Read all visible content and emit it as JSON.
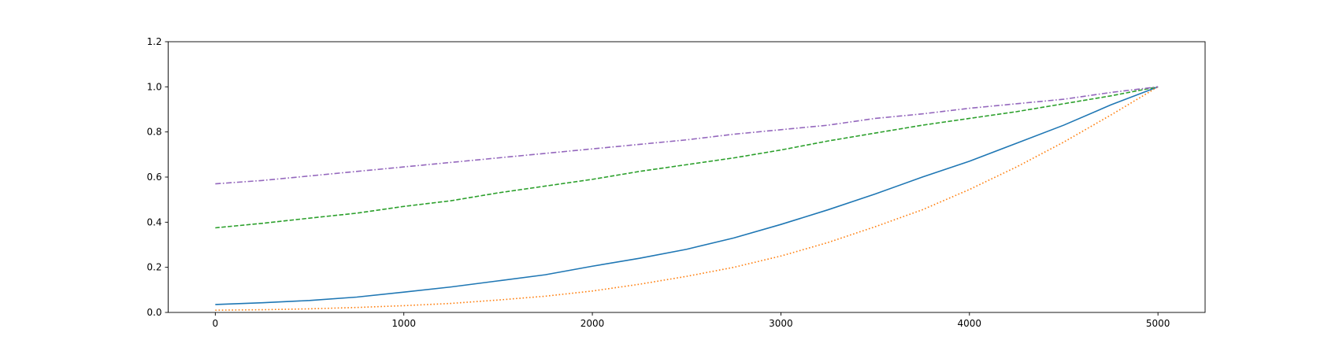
{
  "chart_data": {
    "type": "line",
    "x": [
      0,
      250,
      500,
      750,
      1000,
      1250,
      1500,
      1750,
      2000,
      2250,
      2500,
      2750,
      3000,
      3250,
      3500,
      3750,
      4000,
      4250,
      4500,
      4750,
      5000
    ],
    "series": [
      {
        "color": "#1f77b4",
        "linestyle": "solid",
        "values": [
          0.035,
          0.043,
          0.053,
          0.068,
          0.09,
          0.113,
          0.14,
          0.167,
          0.205,
          0.24,
          0.28,
          0.33,
          0.39,
          0.455,
          0.525,
          0.6,
          0.67,
          0.75,
          0.83,
          0.92,
          1.0
        ]
      },
      {
        "color": "#ff7f0e",
        "linestyle": "dotted",
        "values": [
          0.01,
          0.012,
          0.016,
          0.022,
          0.03,
          0.04,
          0.055,
          0.072,
          0.095,
          0.125,
          0.16,
          0.2,
          0.25,
          0.31,
          0.38,
          0.455,
          0.545,
          0.645,
          0.755,
          0.875,
          1.0
        ]
      },
      {
        "color": "#2ca02c",
        "linestyle": "dashed",
        "values": [
          0.375,
          0.395,
          0.418,
          0.44,
          0.47,
          0.495,
          0.53,
          0.56,
          0.59,
          0.625,
          0.655,
          0.685,
          0.72,
          0.76,
          0.795,
          0.83,
          0.86,
          0.89,
          0.925,
          0.96,
          1.0
        ]
      },
      {
        "color": "#9467bd",
        "linestyle": "dashdot",
        "values": [
          0.57,
          0.585,
          0.605,
          0.625,
          0.645,
          0.665,
          0.685,
          0.705,
          0.725,
          0.745,
          0.765,
          0.79,
          0.81,
          0.83,
          0.86,
          0.88,
          0.905,
          0.925,
          0.945,
          0.975,
          1.0
        ]
      }
    ],
    "xlim": [
      -250,
      5250
    ],
    "xticks": [
      0,
      1000,
      2000,
      3000,
      4000,
      5000
    ],
    "ylim": [
      0,
      1.2
    ],
    "yticks": [
      {
        "value": 0,
        "label": "0.0"
      },
      0.2,
      0.4,
      0.6,
      0.8,
      {
        "value": 1,
        "label": "1.0"
      },
      1.2
    ],
    "grid": false
  }
}
